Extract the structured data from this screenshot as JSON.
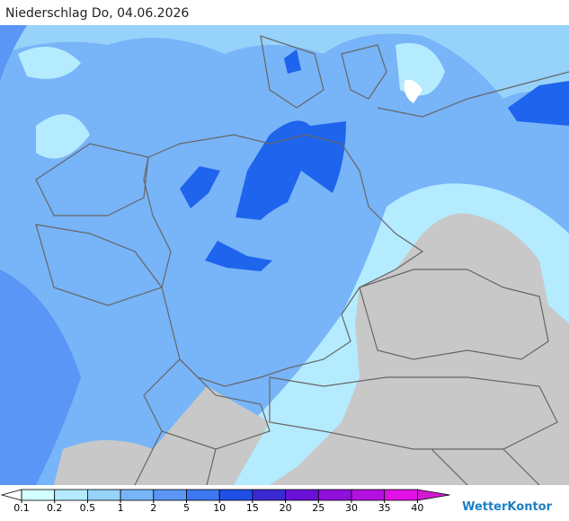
{
  "title": "Niederschlag Do, 04.06.2026",
  "legend": {
    "ticks": [
      0.1,
      0.2,
      0.5,
      1,
      2,
      5,
      10,
      15,
      20,
      25,
      30,
      35,
      40
    ],
    "colors": [
      "#ffffff",
      "#d2ffff",
      "#b4ebff",
      "#96d2fa",
      "#78b4f8",
      "#5a96f5",
      "#3c78f0",
      "#1e50e6",
      "#3a2ad2",
      "#6a10d8",
      "#9010dc",
      "#b410e0",
      "#e010e6",
      "#d01ad0"
    ]
  },
  "brand": "WetterKontor"
}
